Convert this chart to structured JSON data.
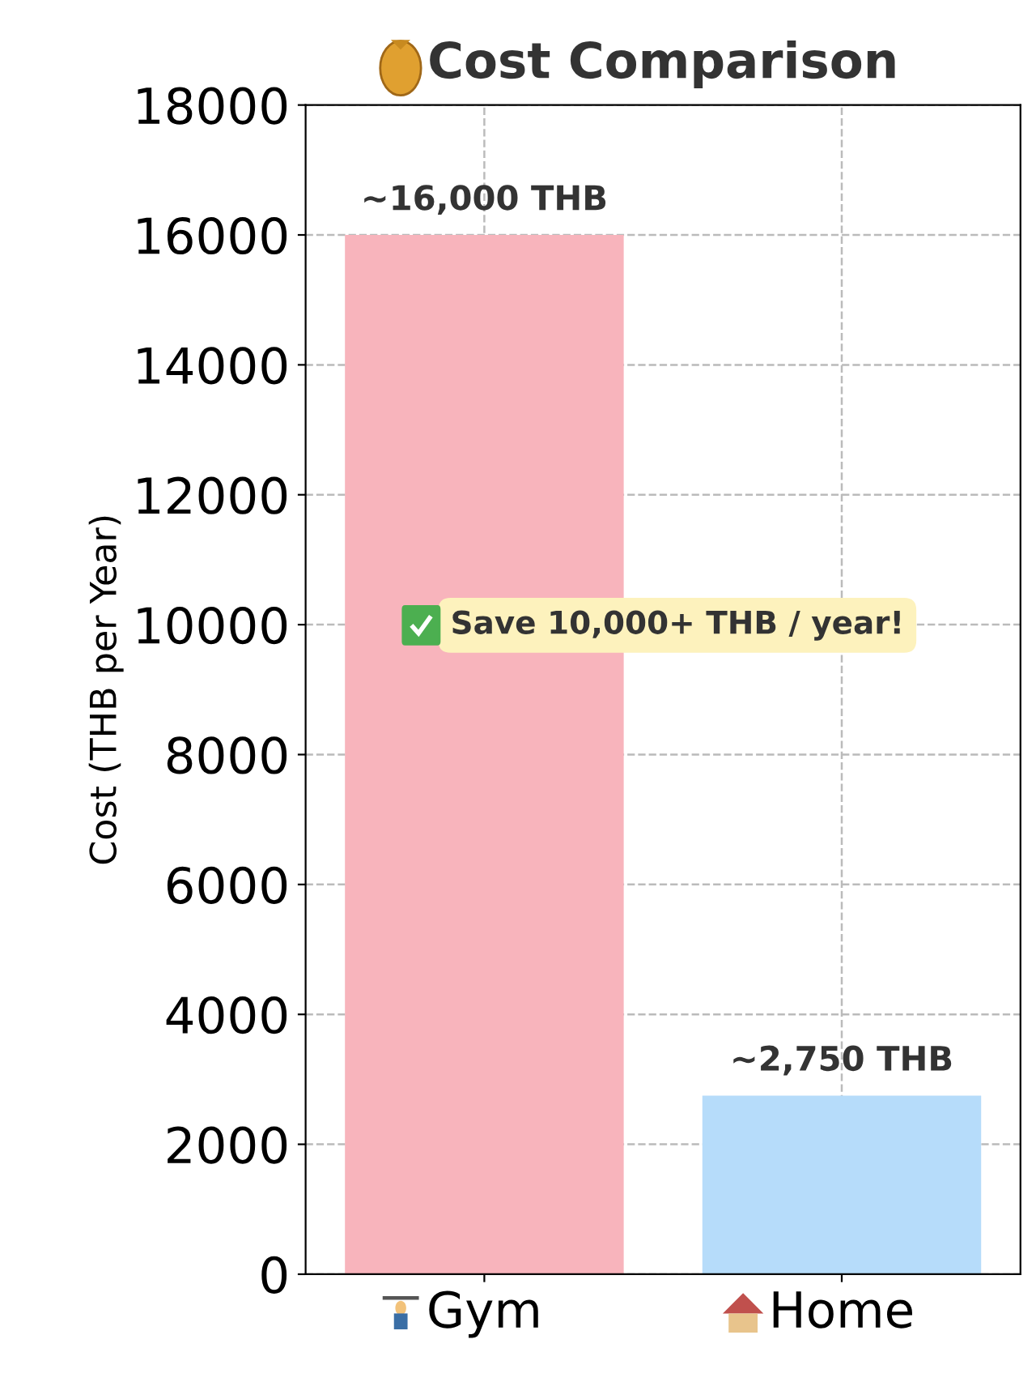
{
  "chart_data": {
    "type": "bar",
    "title": "Cost Comparison",
    "ylabel": "Cost (THB per Year)",
    "categories": [
      "Gym",
      "Home"
    ],
    "values": [
      16000,
      2750
    ],
    "colors": [
      "#f8b4bc",
      "#b6dcfa"
    ],
    "value_labels": [
      "~16,000 THB",
      "~2,750 THB"
    ],
    "ylim": [
      0,
      18000
    ],
    "yticks": [
      0,
      2000,
      4000,
      6000,
      8000,
      10000,
      12000,
      14000,
      16000,
      18000
    ],
    "grid": true,
    "annotations": [
      "Save 10,000+ THB / year!"
    ]
  }
}
